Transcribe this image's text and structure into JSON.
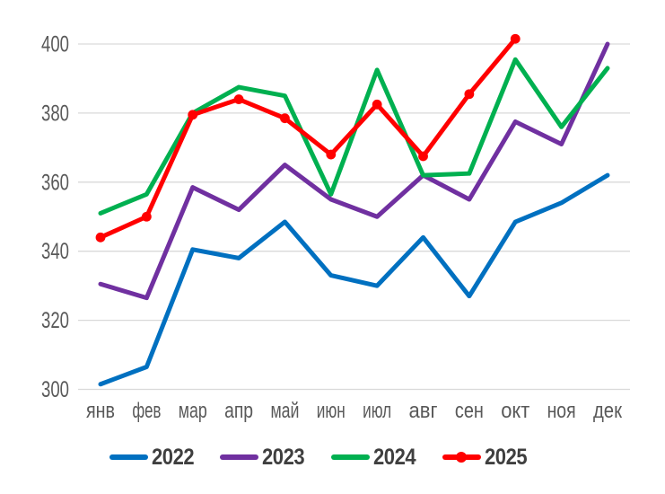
{
  "chart_data": {
    "type": "line",
    "title": "",
    "xlabel": "",
    "ylabel": "",
    "categories": [
      "янв",
      "фев",
      "мар",
      "апр",
      "май",
      "июн",
      "июл",
      "авг",
      "сен",
      "окт",
      "ноя",
      "дек"
    ],
    "series": [
      {
        "name": "2022",
        "color": "#0070C0",
        "marker": false,
        "values": [
          301.5,
          306.5,
          340.5,
          338,
          348.5,
          333,
          330,
          344,
          327,
          348.5,
          354,
          362
        ]
      },
      {
        "name": "2023",
        "color": "#7030A0",
        "marker": false,
        "values": [
          330.5,
          326.5,
          358.5,
          352,
          365,
          355,
          350,
          362,
          355,
          377.5,
          371,
          400
        ]
      },
      {
        "name": "2024",
        "color": "#00B050",
        "marker": false,
        "values": [
          351,
          356.5,
          380,
          387.5,
          385,
          356.5,
          392.5,
          362,
          362.5,
          395.5,
          376,
          393
        ]
      },
      {
        "name": "2025",
        "color": "#FF0000",
        "marker": true,
        "values": [
          344,
          350,
          379.5,
          384,
          378.5,
          368,
          382.5,
          367.5,
          385.5,
          401.5,
          null,
          null
        ]
      }
    ],
    "y_ticks": [
      400,
      380,
      360,
      340,
      320,
      300
    ],
    "ylim": [
      300,
      400
    ],
    "grid": true,
    "legend_position": "bottom",
    "colors": {
      "gridline": "#D9D9D9",
      "axis_text": "#595959",
      "legend_text": "#3F3F3F",
      "background": "#FFFFFF"
    }
  }
}
